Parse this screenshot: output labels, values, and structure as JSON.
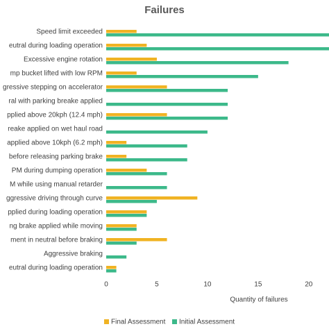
{
  "chart_data": {
    "type": "hbar",
    "title": "Failures",
    "x_label": "Quantity of failures",
    "categories": [
      "Speed limit exceeded",
      "eutral during loading operation",
      "Excessive engine rotation",
      "mp bucket lifted with low RPM",
      "gressive stepping on accelerator",
      "ral with parking breake applied",
      "pplied above 20kph (12.4 mph)",
      "reake applied on wet haul road",
      "applied above 10kph (6.2 mph)",
      "before releasing parking brake",
      "PM during dumping operation",
      "M while using manual retarder",
      "ggressive driving through curve",
      "pplied during loading operation",
      "ng brake applied while moving",
      "ment in neutral before braking",
      "Aggressive braking",
      "eutral during loading operation"
    ],
    "series": [
      {
        "name": "Final Assessment",
        "color": "#f0b323",
        "values": [
          3,
          4,
          5,
          3,
          6,
          0,
          6,
          0,
          2,
          2,
          4,
          0,
          9,
          4,
          3,
          6,
          0,
          1
        ]
      },
      {
        "name": "Initial Assessment",
        "color": "#3cb98a",
        "values": [
          22,
          22,
          18,
          15,
          12,
          12,
          12,
          10,
          8,
          8,
          6,
          6,
          5,
          4,
          3,
          3,
          2,
          1
        ]
      }
    ],
    "xlim": [
      0,
      22
    ],
    "xticks": [
      0,
      5,
      10,
      15,
      20
    ],
    "grid": false,
    "legend": "bottom"
  }
}
